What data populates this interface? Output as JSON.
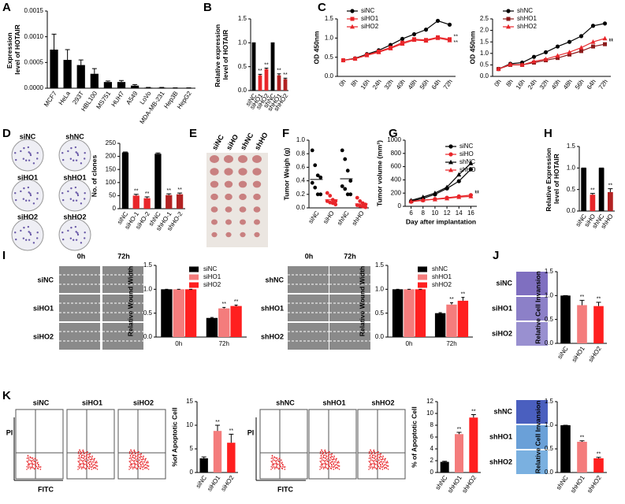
{
  "figure_text": {
    "panels": [
      "A",
      "B",
      "C",
      "D",
      "E",
      "F",
      "G",
      "H",
      "I",
      "J",
      "K"
    ],
    "D": [
      "siNC",
      "shNC",
      "siHO1",
      "shHO1",
      "siHO2",
      "shHO2"
    ],
    "E": [
      "siNC",
      "siHO",
      "shNC",
      "shHO"
    ],
    "I_left": [
      "0h",
      "72h",
      "siNC",
      "siHO1",
      "siHO2"
    ],
    "I_right": [
      "0h",
      "72h",
      "shNC",
      "shHO1",
      "shHO2"
    ],
    "J": [
      "siNC",
      "siHO1",
      "siHO2",
      "shNC",
      "shHO1",
      "shHO2"
    ],
    "K_left": [
      "siNC",
      "siHO1",
      "siHO2",
      "PI",
      "FITC"
    ],
    "K_right": [
      "shNC",
      "shHO1",
      "shHO2",
      "PI",
      "FITC"
    ]
  },
  "chart_data": [
    {
      "type": "bar",
      "ylabel": "Expression level of HOTAIR",
      "categories": [
        "MCF7",
        "HeLa",
        "293T",
        "HBL100",
        "MS751",
        "HUH7",
        "A549",
        "LoVo",
        "MDA-MB-231",
        "Hep3B",
        "HepG2"
      ],
      "values": [
        0.00075,
        0.00055,
        0.00045,
        0.00028,
        0.00012,
        0.00012,
        5e-05,
        1e-05,
        1e-05,
        5e-06,
        5e-06
      ],
      "errors": [
        0.0003,
        0.0002,
        0.0001,
        0.0001,
        2e-05,
        3e-05,
        2e-05,
        5e-06,
        5e-06,
        3e-06,
        3e-06
      ],
      "color": "#000000",
      "ylim": [
        0,
        0.0015
      ],
      "yticks": [
        {
          "value": 0,
          "label": "0.0000"
        },
        {
          "value": 0.0005,
          "label": "0.0005"
        },
        {
          "value": 0.001,
          "label": "0.0010"
        },
        {
          "value": 0.0015,
          "label": "0.0015"
        }
      ]
    },
    {
      "type": "bar",
      "ylabel": "Relative expression level of HOTAIR",
      "categories": [
        "siNC",
        "siHO1",
        "siHO2",
        "shNC",
        "shHO1",
        "shHO2"
      ],
      "values": [
        1,
        0.32,
        0.45,
        1,
        0.32,
        0.24
      ],
      "errors": [
        0,
        0.02,
        0.02,
        0,
        0.03,
        0.02
      ],
      "colors": [
        "#000000",
        "#e8262a",
        "#e8262a",
        "#000000",
        "#b22222",
        "#b22222"
      ],
      "sig": [
        null,
        "**",
        "**",
        null,
        "**",
        "**"
      ],
      "ylim": [
        0,
        1.5
      ],
      "yticks": [
        {
          "value": 0,
          "label": "0.0"
        },
        0.5,
        {
          "value": 1,
          "label": "1.0"
        },
        1.5
      ]
    },
    {
      "type": "line",
      "ylabel": "OD 450nm",
      "categories": [
        "0h",
        "8h",
        "16h",
        "24h",
        "32h",
        "40h",
        "48h",
        "56h",
        "64h",
        "72h"
      ],
      "ylim": [
        0,
        1.5
      ],
      "yticks": [
        {
          "value": 0,
          "label": "0.0"
        },
        0.5,
        {
          "value": 1,
          "label": "1.0"
        },
        1.5
      ],
      "series": [
        {
          "name": "siNC",
          "color": "#000000",
          "marker": "circle",
          "values": [
            0.42,
            0.47,
            0.58,
            0.68,
            0.82,
            0.98,
            1.1,
            1.22,
            1.45,
            1.35
          ]
        },
        {
          "name": "siHO1",
          "color": "#e8262a",
          "marker": "square",
          "values": [
            0.42,
            0.46,
            0.56,
            0.65,
            0.75,
            0.88,
            0.97,
            0.95,
            1.02,
            0.97
          ],
          "sig": "**"
        },
        {
          "name": "siHO2",
          "color": "#e8262a",
          "marker": "triangle",
          "values": [
            0.42,
            0.46,
            0.55,
            0.63,
            0.73,
            0.85,
            0.95,
            0.93,
            1.0,
            0.94
          ],
          "sig": "**"
        }
      ]
    },
    {
      "type": "line",
      "ylabel": "OD 450nm",
      "categories": [
        "0h",
        "8h",
        "16h",
        "24h",
        "32h",
        "40h",
        "48h",
        "56h",
        "64h",
        "72h"
      ],
      "ylim": [
        0,
        2.5
      ],
      "yticks": [
        {
          "value": 0,
          "label": "0.0"
        },
        0.5,
        {
          "value": 1,
          "label": "1.0"
        },
        1.5,
        {
          "value": 2,
          "label": "2.0"
        },
        2.5
      ],
      "series": [
        {
          "name": "shNC",
          "color": "#000000",
          "marker": "circle",
          "values": [
            0.32,
            0.55,
            0.6,
            0.85,
            1.05,
            1.3,
            1.5,
            1.75,
            2.2,
            2.3
          ]
        },
        {
          "name": "shHO1",
          "color": "#8b1a1a",
          "marker": "square",
          "values": [
            0.32,
            0.5,
            0.5,
            0.6,
            0.7,
            0.8,
            0.95,
            1.1,
            1.3,
            1.4
          ],
          "sig": "**"
        },
        {
          "name": "shHO2",
          "color": "#e8262a",
          "marker": "triangle",
          "values": [
            0.32,
            0.52,
            0.5,
            0.65,
            0.75,
            0.9,
            1.05,
            1.25,
            1.5,
            1.65
          ],
          "sig": "**"
        }
      ]
    },
    {
      "type": "bar",
      "ylabel": "No. of clones",
      "categories": [
        "siNC",
        "siHO-1",
        "siHO-2",
        "shNC",
        "shHO-1",
        "shHO-2"
      ],
      "values": [
        215,
        50,
        40,
        210,
        52,
        55
      ],
      "errors": [
        2,
        5,
        5,
        3,
        5,
        5
      ],
      "colors": [
        "#000000",
        "#e8262a",
        "#e8262a",
        "#000000",
        "#b22222",
        "#b22222"
      ],
      "sig": [
        null,
        "**",
        "**",
        null,
        "**",
        "**"
      ],
      "ylim": [
        0,
        250
      ],
      "yticks": [
        0,
        50,
        100,
        150,
        200,
        250
      ]
    },
    {
      "type": "strip",
      "ylabel": "Tumor Weigh (g)",
      "categories": [
        "siNC",
        "siHO",
        "shNC",
        "shHO"
      ],
      "colors": [
        "#000000",
        "#e8262a",
        "#000000",
        "#e8262a"
      ],
      "points": [
        [
          0.85,
          0.63,
          0.48,
          0.45,
          0.37,
          0.3,
          0.2,
          0.2
        ],
        [
          0.22,
          0.18,
          0.12,
          0.1,
          0.1,
          0.08,
          0.07,
          0.05
        ],
        [
          0.85,
          0.72,
          0.55,
          0.4,
          0.32,
          0.28,
          0.2,
          0.2
        ],
        [
          0.15,
          0.1,
          0.07,
          0.05,
          0.04,
          0.03,
          0.02,
          0.01
        ]
      ],
      "means": [
        0.42,
        0.12,
        0.43,
        0.06
      ],
      "ylim": [
        0,
        1
      ],
      "yticks": [
        {
          "value": 0,
          "label": "0.0"
        },
        0.2,
        0.4,
        0.6,
        0.8,
        {
          "value": 1,
          "label": "1.0"
        }
      ]
    },
    {
      "type": "line",
      "ylabel": "Tumor volume (mm³)",
      "xlabel": "Day after implantation",
      "x": [
        6,
        8,
        10,
        12,
        14,
        16
      ],
      "xlim": [
        5,
        17
      ],
      "xticks": [
        6,
        8,
        10,
        12,
        14,
        16
      ],
      "ylim": [
        0,
        1000
      ],
      "yticks": [
        0,
        200,
        400,
        600,
        800,
        1000
      ],
      "series": [
        {
          "name": "siNC",
          "color": "#000000",
          "marker": "circle",
          "values": [
            80,
            120,
            180,
            270,
            380,
            560
          ]
        },
        {
          "name": "siHO",
          "color": "#e8262a",
          "marker": "circle",
          "values": [
            70,
            90,
            110,
            130,
            150,
            170
          ],
          "sig": "**"
        },
        {
          "name": "shNC",
          "color": "#000000",
          "marker": "triangle",
          "values": [
            90,
            140,
            200,
            290,
            480,
            650
          ]
        },
        {
          "name": "shHO",
          "color": "#e8262a",
          "marker": "triangle",
          "values": [
            75,
            95,
            105,
            120,
            140,
            150
          ],
          "sig": "**"
        }
      ]
    },
    {
      "type": "bar",
      "ylabel": "Relative Expression level of HOTAIR",
      "categories": [
        "siNC",
        "siHO",
        "shNC",
        "shHO"
      ],
      "values": [
        1,
        0.38,
        1,
        0.44
      ],
      "errors": [
        0,
        0.03,
        0,
        0.08
      ],
      "colors": [
        "#000000",
        "#e8262a",
        "#000000",
        "#b22222"
      ],
      "sig": [
        null,
        "**",
        null,
        "**"
      ],
      "ylim": [
        0,
        1.5
      ],
      "yticks": [
        {
          "value": 0,
          "label": "0.0"
        },
        0.5,
        {
          "value": 1,
          "label": "1.0"
        },
        1.5
      ]
    },
    {
      "type": "bar",
      "ylabel": "Relative Wound Width",
      "categories": [
        "0h",
        "72h"
      ],
      "ylim": [
        0,
        1.5
      ],
      "yticks": [
        {
          "value": 0,
          "label": "0.0"
        },
        0.5,
        {
          "value": 1,
          "label": "1.0"
        },
        1.5
      ],
      "series": [
        {
          "name": "siNC",
          "color": "#000000",
          "values": [
            1,
            0.4
          ],
          "errors": [
            0,
            0.01
          ]
        },
        {
          "name": "siHO1",
          "color": "#f47c7c",
          "values": [
            1,
            0.6
          ],
          "errors": [
            0,
            0.02
          ],
          "sig": [
            null,
            "**"
          ]
        },
        {
          "name": "siHO2",
          "color": "#ff1f1f",
          "values": [
            1,
            0.65
          ],
          "errors": [
            0,
            0.02
          ],
          "sig": [
            null,
            "**"
          ]
        }
      ]
    },
    {
      "type": "bar",
      "ylabel": "Relative Wound Width",
      "categories": [
        "0h",
        "72h"
      ],
      "ylim": [
        0,
        1.5
      ],
      "yticks": [
        {
          "value": 0,
          "label": "0.0"
        },
        0.5,
        {
          "value": 1,
          "label": "1.0"
        },
        1.5
      ],
      "series": [
        {
          "name": "shNC",
          "color": "#000000",
          "values": [
            1,
            0.5
          ],
          "errors": [
            0,
            0.01
          ]
        },
        {
          "name": "shHO1",
          "color": "#f47c7c",
          "values": [
            1,
            0.68
          ],
          "errors": [
            0,
            0.04
          ],
          "sig": [
            null,
            "**"
          ]
        },
        {
          "name": "shHO2",
          "color": "#ff1f1f",
          "values": [
            1,
            0.76
          ],
          "errors": [
            0,
            0.07
          ],
          "sig": [
            null,
            "**"
          ]
        }
      ]
    },
    {
      "type": "bar",
      "ylabel": "Relative Cell Invansion",
      "categories": [
        "siNC",
        "siHO1",
        "siHO2"
      ],
      "values": [
        1,
        0.8,
        0.78
      ],
      "errors": [
        0,
        0.1,
        0.08
      ],
      "colors": [
        "#000000",
        "#f47c7c",
        "#ff1f1f"
      ],
      "sig": [
        null,
        "**",
        "**"
      ],
      "ylim": [
        0,
        1.5
      ],
      "yticks": [
        {
          "value": 0,
          "label": "0.0"
        },
        0.5,
        {
          "value": 1,
          "label": "1.0"
        },
        1.5
      ]
    },
    {
      "type": "bar",
      "ylabel": "%of Apoptotic Cell",
      "categories": [
        "siNC",
        "siHO1",
        "siHO2"
      ],
      "values": [
        3,
        8.8,
        6.3
      ],
      "errors": [
        0.3,
        1.2,
        1.8
      ],
      "colors": [
        "#000000",
        "#f47c7c",
        "#ff1f1f"
      ],
      "sig": [
        null,
        "**",
        "**"
      ],
      "ylim": [
        0,
        15
      ],
      "yticks": [
        0,
        5,
        10,
        15
      ]
    },
    {
      "type": "bar",
      "ylabel": "% of Apoptotic Cell",
      "categories": [
        "shNC",
        "shHO1",
        "shHO2"
      ],
      "values": [
        1.8,
        6.5,
        9.3
      ],
      "errors": [
        0.1,
        0.3,
        0.5
      ],
      "colors": [
        "#000000",
        "#f47c7c",
        "#ff1f1f"
      ],
      "sig": [
        null,
        "**",
        "**"
      ],
      "ylim": [
        0,
        12
      ],
      "yticks": [
        0,
        2,
        4,
        6,
        8,
        10,
        12
      ]
    },
    {
      "type": "bar",
      "ylabel": "Relative Cell Invansion",
      "categories": [
        "shNC",
        "shHO1",
        "shHO2"
      ],
      "values": [
        1,
        0.65,
        0.3
      ],
      "errors": [
        0,
        0.02,
        0.02
      ],
      "colors": [
        "#000000",
        "#f47c7c",
        "#ff1f1f"
      ],
      "sig": [
        null,
        "**",
        "**"
      ],
      "ylim": [
        0,
        1.5
      ],
      "yticks": [
        {
          "value": 0,
          "label": "0.0"
        },
        0.5,
        {
          "value": 1,
          "label": "1.0"
        },
        1.5
      ]
    }
  ]
}
